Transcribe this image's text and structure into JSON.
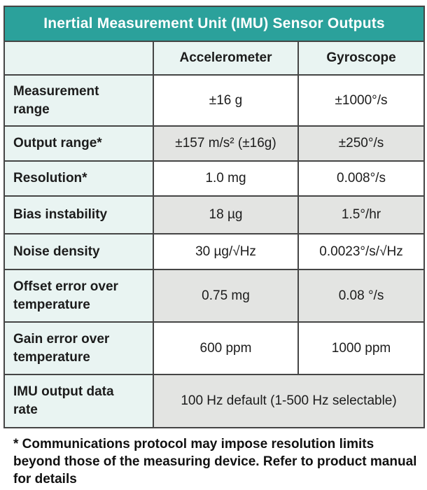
{
  "colors": {
    "title_bar": "#2ba19b",
    "label_column": "#e9f4f2",
    "alt_row_gray": "#e3e4e2",
    "border": "#454545",
    "title_text": "#ffffff"
  },
  "table": {
    "title": "Inertial Measurement Unit (IMU) Sensor Outputs",
    "columns": [
      "",
      "Accelerometer",
      "Gyroscope"
    ],
    "rows": [
      {
        "label": "Measurement\nrange",
        "accelerometer": "±16 g",
        "gyroscope": "±1000°/s"
      },
      {
        "label": "Output range*",
        "accelerometer": "±157 m/s² (±16g)",
        "gyroscope": "±250°/s"
      },
      {
        "label": "Resolution*",
        "accelerometer": "1.0 mg",
        "gyroscope": "0.008°/s"
      },
      {
        "label": "Bias instability",
        "accelerometer": "18 µg",
        "gyroscope": "1.5°/hr"
      },
      {
        "label": "Noise density",
        "accelerometer": "30 µg/√Hz",
        "gyroscope": "0.0023°/s/√Hz"
      },
      {
        "label": "Offset error over\ntemperature",
        "accelerometer": "0.75 mg",
        "gyroscope": "0.08 °/s"
      },
      {
        "label": "Gain error over\ntemperature",
        "accelerometer": "600 ppm",
        "gyroscope": "1000 ppm"
      },
      {
        "label": "IMU output data\nrate",
        "merged_value": "100 Hz default (1-500 Hz selectable)"
      }
    ]
  },
  "footnote": "* Communications protocol may impose resolution limits beyond those of the measuring device. Refer to product manual for details"
}
